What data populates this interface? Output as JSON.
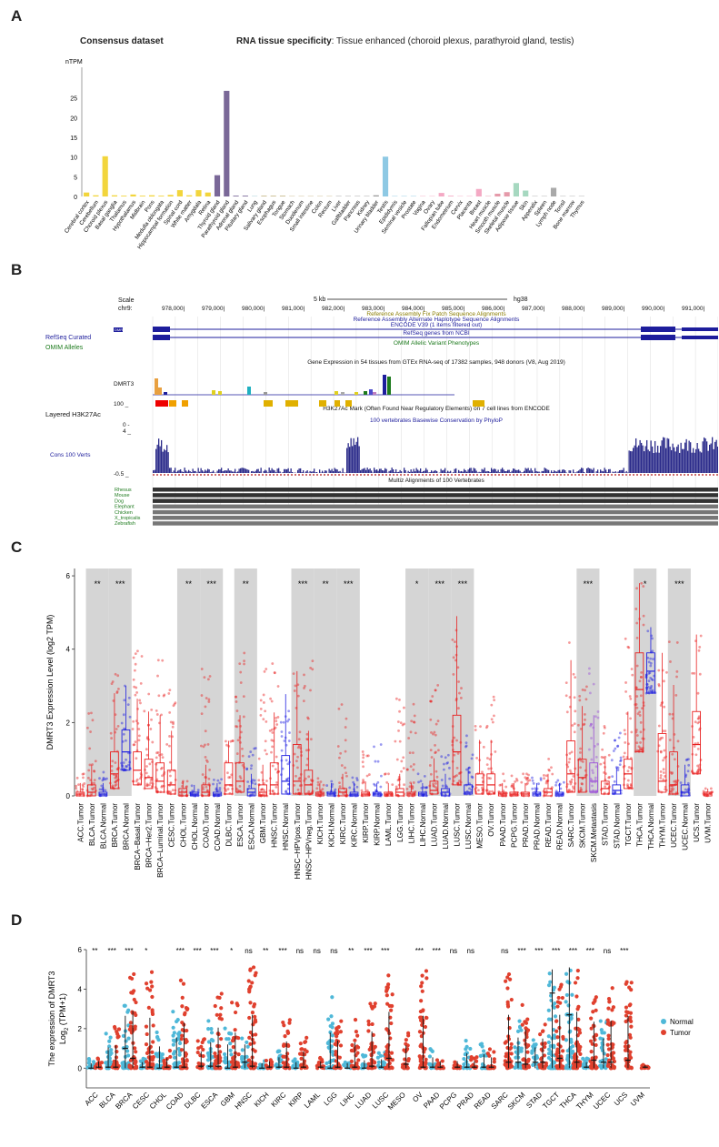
{
  "panels": {
    "a": "A",
    "b": "B",
    "c": "C",
    "d": "D"
  },
  "panel_a": {
    "left_title": "Consensus dataset",
    "right_title_bold": "RNA tissue specificity",
    "right_title_rest": ": Tissue enhanced (choroid plexus, parathyroid gland, testis)"
  },
  "panel_b": {
    "scale_label": "Scale",
    "scale_value": "5 kb",
    "assembly": "hg38",
    "chrom": "chr9:",
    "positions": [
      "978,000|",
      "979,000|",
      "980,000|",
      "981,000|",
      "982,000|",
      "983,000|",
      "984,000|",
      "985,000|",
      "986,000|",
      "987,000|",
      "988,000|",
      "989,000|",
      "990,000|",
      "991,000|"
    ],
    "track_texts": [
      "Reference Assembly Fix Patch Sequence Alignments",
      "Reference Assembly Alternate Haplotype Sequence Alignments",
      "ENCODE V39 (1 items filtered out)",
      "RefSeq genes from NCBI",
      "OMIM Allelic Variant Phenotypes",
      "Gene Expression in 54 tissues from GTEx RNA-seq of 17382 samples, 948 donors (V8, Aug 2019)",
      "H3K27Ac Mark (Often Found Near Regulatory Elements) on 7 cell lines from ENCODE",
      "100 vertebrates Basewise Conservation by PhyloP",
      "Multiz Alignments of 100 Vertebrates"
    ],
    "left_labels": {
      "dmrt3_small": "DMRT3",
      "refseq": "RefSeq Curated",
      "omim": "OMIM Alleles",
      "dmrt3": "DMRT3",
      "h3k_value": "100 _",
      "h3k": "Layered H3K27Ac",
      "cons_top": "4 _",
      "cons_zero": "0 -",
      "cons": "Cons 100 Verts",
      "cons_low": "-0.5 _",
      "species": [
        "Rhesus",
        "Mouse",
        "Dog",
        "Elephant",
        "Chicken",
        "X_tropicalis",
        "Zebrafish"
      ]
    }
  },
  "chart_data": [
    {
      "type": "bar",
      "ylabel": "nTPM",
      "ylim": [
        0,
        30
      ],
      "yticks": [
        0,
        5,
        10,
        15,
        20,
        25
      ],
      "categories": [
        "Cerebral cortex",
        "Cerebellum",
        "Choroid plexus",
        "Basal ganglia",
        "Thalamus",
        "Hypothalamus",
        "Midbrain",
        "Pons",
        "Medulla oblongata",
        "Hippocampal formation",
        "Spinal cord",
        "White matter",
        "Amygdala",
        "Retina",
        "Thyroid gland",
        "Parathyroid gland",
        "Adrenal gland",
        "Pituitary gland",
        "Lung",
        "Salivary gland",
        "Esophagus",
        "Tongue",
        "Stomach",
        "Duodenum",
        "Small intestine",
        "Colon",
        "Rectum",
        "Liver",
        "Gallbladder",
        "Pancreas",
        "Kidney",
        "Urinary bladder",
        "Testis",
        "Epididymis",
        "Seminal vesicle",
        "Prostate",
        "Vagina",
        "Ovary",
        "Fallopian tube",
        "Endometrium",
        "Cervix",
        "Placenta",
        "Breast",
        "Heart muscle",
        "Smooth muscle",
        "Skeletal muscle",
        "Adipose tissue",
        "Skin",
        "Appendix",
        "Spleen",
        "Lymph node",
        "Tonsil",
        "Bone marrow",
        "Thymus"
      ],
      "values": [
        1.0,
        0.3,
        10.2,
        0.3,
        0.2,
        0.5,
        0.2,
        0.3,
        0.2,
        0.4,
        1.6,
        0.3,
        1.6,
        1.0,
        5.4,
        26.8,
        0.2,
        0.2,
        0.1,
        0.2,
        0.2,
        0.2,
        0.1,
        0.1,
        0.1,
        0.1,
        0.1,
        0.1,
        0.1,
        0.1,
        0.1,
        0.3,
        10.1,
        0.1,
        0.1,
        0.1,
        0.1,
        0.1,
        0.9,
        0.2,
        0.1,
        0.1,
        1.9,
        0.1,
        0.7,
        1.1,
        3.4,
        1.5,
        0.1,
        0.1,
        2.2,
        0.1,
        0.1,
        0.1
      ],
      "colors": [
        "#f2d53c",
        "#f2d53c",
        "#f2d53c",
        "#f2d53c",
        "#f2d53c",
        "#f2d53c",
        "#f2d53c",
        "#f2d53c",
        "#f2d53c",
        "#f2d53c",
        "#f2d53c",
        "#f2d53c",
        "#f2d53c",
        "#f2d53c",
        "#7a6898",
        "#7a6898",
        "#7a6898",
        "#7a6898",
        "#9ccbd3",
        "#c8b98a",
        "#c8b98a",
        "#c8b98a",
        "#c8b98a",
        "#c8b98a",
        "#c8b98a",
        "#c8b98a",
        "#c8b98a",
        "#9c9c9c",
        "#9c9c9c",
        "#9c9c9c",
        "#9c9c9c",
        "#9c9c9c",
        "#8ec9e4",
        "#8ec9e4",
        "#8ec9e4",
        "#8ec9e4",
        "#f4a9c4",
        "#f4a9c4",
        "#f4a9c4",
        "#f4a9c4",
        "#f4a9c4",
        "#f4a9c4",
        "#f4a9c4",
        "#e59aaa",
        "#e59aaa",
        "#e59aaa",
        "#a6d8c0",
        "#a6d8c0",
        "#a9a9a9",
        "#a9a9a9",
        "#a9a9a9",
        "#a9a9a9",
        "#a9a9a9",
        "#a9a9a9"
      ]
    },
    {
      "type": "box",
      "ylabel": "DMRT3 Expression Level (log2 TPM)",
      "ylim": [
        0,
        6.2
      ],
      "yticks": [
        0,
        2,
        4,
        6
      ],
      "categories": [
        "ACC.Tumor",
        "BLCA.Tumor",
        "BLCA.Normal",
        "BRCA.Tumor",
        "BRCA.Normal",
        "BRCA−Basal.Tumor",
        "BRCA−Her2.Tumor",
        "BRCA−Luminal.Tumor",
        "CESC.Tumor",
        "CHOL.Tumor",
        "CHOL.Normal",
        "COAD.Tumor",
        "COAD.Normal",
        "DLBC.Tumor",
        "ESCA.Tumor",
        "ESCA.Normal",
        "GBM.Tumor",
        "HNSC.Tumor",
        "HNSC.Normal",
        "HNSC−HPVpos.Tumor",
        "HNSC−HPVneg.Tumor",
        "KICH.Tumor",
        "KICH.Normal",
        "KIRC.Tumor",
        "KIRC.Normal",
        "KIRP.Tumor",
        "KIRP.Normal",
        "LAML.Tumor",
        "LGG.Tumor",
        "LIHC.Tumor",
        "LIHC.Normal",
        "LUAD.Tumor",
        "LUAD.Normal",
        "LUSC.Tumor",
        "LUSC.Normal",
        "MESO.Tumor",
        "OV.Tumor",
        "PAAD.Tumor",
        "PCPG.Tumor",
        "PRAD.Tumor",
        "PRAD.Normal",
        "READ.Tumor",
        "READ.Normal",
        "SARC.Tumor",
        "SKCM.Tumor",
        "SKCM.Metastasis",
        "STAD.Tumor",
        "STAD.Normal",
        "TGCT.Tumor",
        "THCA.Tumor",
        "THCA.Normal",
        "THYM.Tumor",
        "UCEC.Tumor",
        "UCEC.Normal",
        "UCS.Tumor",
        "UVM.Tumor"
      ],
      "medians": [
        0.05,
        0.1,
        0.05,
        0.6,
        1.2,
        0.7,
        0.5,
        0.4,
        0.3,
        0.1,
        0.05,
        0.1,
        0.05,
        0.3,
        0.4,
        0.1,
        0.1,
        0.3,
        0.4,
        0.4,
        0.3,
        0.05,
        0.05,
        0.1,
        0.05,
        0.05,
        0.05,
        0.05,
        0.1,
        0.05,
        0.05,
        0.15,
        0.1,
        1.2,
        0.1,
        0.3,
        0.3,
        0.05,
        0.05,
        0.05,
        0.05,
        0.1,
        0.05,
        0.6,
        0.5,
        0.4,
        0.2,
        0.15,
        0.6,
        2.9,
        3.4,
        0.4,
        0.3,
        0.1,
        1.4,
        0.05
      ],
      "q1": [
        0,
        0,
        0,
        0.2,
        0.7,
        0.3,
        0.2,
        0.1,
        0.05,
        0,
        0,
        0,
        0,
        0.05,
        0.1,
        0,
        0,
        0.05,
        0.05,
        0.05,
        0.05,
        0,
        0,
        0,
        0,
        0,
        0,
        0,
        0,
        0,
        0,
        0.05,
        0,
        0.3,
        0.05,
        0.05,
        0.05,
        0,
        0,
        0,
        0,
        0,
        0,
        0.1,
        0.1,
        0.1,
        0.05,
        0.05,
        0.2,
        1.2,
        2.8,
        0.1,
        0.05,
        0,
        0.6,
        0
      ],
      "q3": [
        0.1,
        0.3,
        0.1,
        1.2,
        1.8,
        1.2,
        1.0,
        0.9,
        0.7,
        0.2,
        0.1,
        0.3,
        0.1,
        0.9,
        0.9,
        0.2,
        0.3,
        0.9,
        1.1,
        1.4,
        0.7,
        0.1,
        0.1,
        0.2,
        0.1,
        0.1,
        0.1,
        0.1,
        0.2,
        0.1,
        0.1,
        0.4,
        0.2,
        2.2,
        0.3,
        0.6,
        0.6,
        0.1,
        0.1,
        0.1,
        0.1,
        0.2,
        0.1,
        1.5,
        1.0,
        0.9,
        0.4,
        0.3,
        1.0,
        3.9,
        3.9,
        1.7,
        1.2,
        0.3,
        2.3,
        0.1
      ],
      "max": [
        0.6,
        2.3,
        0.7,
        4.5,
        3.0,
        4.0,
        2.8,
        3.7,
        2.9,
        0.4,
        0.3,
        3.8,
        0.6,
        1.5,
        3.9,
        1.3,
        3.6,
        3.7,
        2.8,
        3.4,
        3.7,
        0.5,
        0.4,
        2.5,
        0.5,
        1.5,
        1.4,
        0.6,
        2.7,
        2.5,
        0.6,
        3.5,
        1.3,
        4.9,
        1.8,
        1.9,
        2.7,
        0.6,
        0.6,
        0.6,
        0.5,
        1.1,
        0.5,
        4.2,
        3.2,
        3.6,
        2.2,
        1.9,
        4.4,
        5.8,
        4.6,
        3.9,
        4.2,
        1.0,
        4.4,
        0.2
      ],
      "significance": [
        {
          "pair": [
            1,
            2
          ],
          "label": "**"
        },
        {
          "pair": [
            3,
            4
          ],
          "label": "***"
        },
        {
          "pair": [
            9,
            10
          ],
          "label": "**"
        },
        {
          "pair": [
            11,
            12
          ],
          "label": "***"
        },
        {
          "pair": [
            14,
            15
          ],
          "label": "**"
        },
        {
          "pair": [
            19,
            20
          ],
          "label": "***"
        },
        {
          "pair": [
            21,
            22
          ],
          "label": "**"
        },
        {
          "pair": [
            23,
            24
          ],
          "label": "***"
        },
        {
          "pair": [
            29,
            30
          ],
          "label": "*"
        },
        {
          "pair": [
            31,
            32
          ],
          "label": "***"
        },
        {
          "pair": [
            33,
            34
          ],
          "label": "***"
        },
        {
          "pair": [
            44,
            45
          ],
          "label": "***"
        },
        {
          "pair": [
            49,
            50
          ],
          "label": "*"
        },
        {
          "pair": [
            52,
            53
          ],
          "label": "***"
        }
      ]
    },
    {
      "type": "scatter",
      "ylabel": "The expression of DMRT3",
      "ylabel2_prefix": "Log",
      "ylabel2_sub": "2",
      "ylabel2_suffix": " (TPM+1)",
      "ylim": [
        -1,
        6
      ],
      "yticks": [
        0,
        2,
        4,
        6
      ],
      "categories": [
        "ACC",
        "BLCA",
        "BRCA",
        "CESC",
        "CHOL",
        "COAD",
        "DLBC",
        "ESCA",
        "GBM",
        "HNSC",
        "KICH",
        "KIRC",
        "KIRP",
        "LAML",
        "LGG",
        "LIHC",
        "LUAD",
        "LUSC",
        "MESO",
        "OV",
        "PAAD",
        "PCPG",
        "PRAD",
        "READ",
        "SARC",
        "SKCM",
        "STAD",
        "TGCT",
        "THCA",
        "THYM",
        "UCEC",
        "UCS",
        "UVM"
      ],
      "significance": [
        "**",
        "***",
        "***",
        "*",
        "",
        "***",
        "***",
        "***",
        "*",
        "ns",
        "**",
        "***",
        "ns",
        "ns",
        "ns",
        "**",
        "***",
        "***",
        "",
        "***",
        "***",
        "ns",
        "ns",
        "",
        "ns",
        "***",
        "***",
        "***",
        "***",
        "***",
        "ns",
        "***",
        ""
      ],
      "normal_median": [
        0,
        0.05,
        1.0,
        0.05,
        0,
        0.05,
        0,
        0.1,
        0,
        0.3,
        0,
        0.05,
        0,
        0,
        0,
        0,
        0,
        0.05,
        0,
        0,
        0.05,
        0,
        0.05,
        0.05,
        0,
        0.3,
        0.3,
        3.8,
        2.7,
        0.05,
        0.3,
        0,
        0
      ],
      "normal_max": [
        0.5,
        2.0,
        3.3,
        0.5,
        2.2,
        3.0,
        0,
        2.4,
        2.4,
        1.8,
        0.5,
        1.0,
        0.6,
        0,
        3.6,
        0.5,
        0.8,
        0.8,
        0,
        0,
        1.0,
        0,
        1.4,
        1.3,
        0,
        2.5,
        1.5,
        5.0,
        5.1,
        0.5,
        2.4,
        0,
        0
      ],
      "tumor_median": [
        0.05,
        0.05,
        0.5,
        0.05,
        0.05,
        0.05,
        0.1,
        0.1,
        0.05,
        0.1,
        0.05,
        0.05,
        0.05,
        0.05,
        0.05,
        0.05,
        0.1,
        0.5,
        0.2,
        0.05,
        0.05,
        0.05,
        0.05,
        0.05,
        0.3,
        0.2,
        0.3,
        0.5,
        0.3,
        0.4,
        0.3,
        0.4,
        0.05
      ],
      "tumor_max": [
        0.6,
        2.2,
        4.8,
        5.0,
        0.9,
        4.5,
        1.5,
        3.9,
        3.5,
        5.2,
        0.6,
        2.6,
        1.6,
        0.6,
        2.7,
        2.5,
        3.5,
        4.7,
        1.9,
        5.2,
        0.6,
        0.6,
        0.6,
        1.0,
        4.8,
        3.5,
        2.4,
        4.4,
        5.1,
        3.9,
        4.2,
        4.5,
        0.2
      ],
      "legend": [
        "Normal",
        "Tumor"
      ],
      "series_colors": [
        "#4fb8d8",
        "#e0402e"
      ]
    }
  ]
}
